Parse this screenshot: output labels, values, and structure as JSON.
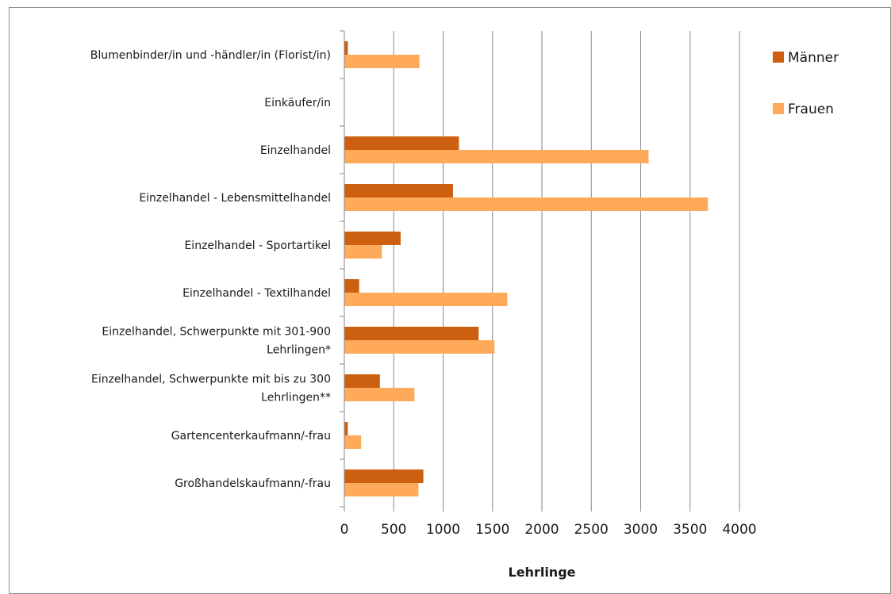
{
  "chart_data": {
    "type": "bar",
    "orientation": "horizontal",
    "categories": [
      [
        "Blumenbinder/in und -händler/in (Florist/in)"
      ],
      [
        "Einkäufer/in"
      ],
      [
        "Einzelhandel"
      ],
      [
        "Einzelhandel - Lebensmittelhandel"
      ],
      [
        "Einzelhandel - Sportartikel"
      ],
      [
        "Einzelhandel - Textilhandel"
      ],
      [
        "Einzelhandel, Schwerpunkte mit 301-900",
        "Lehrlingen*"
      ],
      [
        "Einzelhandel, Schwerpunkte mit bis zu 300",
        "Lehrlingen**"
      ],
      [
        "Gartencenterkaufmann/-frau"
      ],
      [
        "Großhandelskaufmann/-frau"
      ]
    ],
    "series": [
      {
        "name": "Männer",
        "color": "#cc6010",
        "values": [
          35,
          0,
          1160,
          1100,
          570,
          150,
          1360,
          360,
          35,
          800
        ]
      },
      {
        "name": "Frauen",
        "color": "#ffaa5a",
        "values": [
          760,
          0,
          3080,
          3680,
          380,
          1650,
          1520,
          710,
          170,
          750
        ]
      }
    ],
    "xlim": [
      0,
      4000
    ],
    "xticks": [
      "0",
      "500",
      "1000",
      "1500",
      "2000",
      "2500",
      "3000",
      "3500",
      "4000"
    ],
    "xlabel": "Lehrlinge",
    "grid": "vertical",
    "legend_position": "right"
  }
}
